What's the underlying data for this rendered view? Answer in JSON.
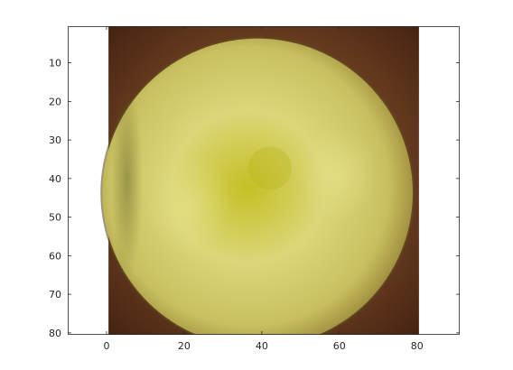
{
  "chart_data": {
    "type": "heatmap",
    "title": "",
    "xlabel": "",
    "ylabel": "",
    "xlim": [
      -10,
      91
    ],
    "ylim": [
      0.5,
      80.5
    ],
    "y_reversed": true,
    "x_ticks": [
      0,
      20,
      40,
      60,
      80
    ],
    "x_tick_labels": [
      "0",
      "20",
      "40",
      "60",
      "80"
    ],
    "y_ticks": [
      10,
      20,
      30,
      40,
      50,
      60,
      70,
      80
    ],
    "y_tick_labels": [
      "10",
      "20",
      "30",
      "40",
      "50",
      "60",
      "70",
      "80"
    ],
    "image_extent": {
      "x": [
        0.5,
        80.5
      ],
      "y": [
        0.5,
        80.5
      ]
    },
    "grid": false,
    "content": "pixel image of a yellow-green apple viewed from above on a brown background",
    "colors": {
      "background_brown": "#6e3f22",
      "corner_dark": "#3e1f10",
      "apple_rim": "#9c8a3c",
      "apple_body": "#c8c060",
      "apple_light": "#dcd67a",
      "apple_center": "#c4c024",
      "axis": "#262626"
    }
  }
}
